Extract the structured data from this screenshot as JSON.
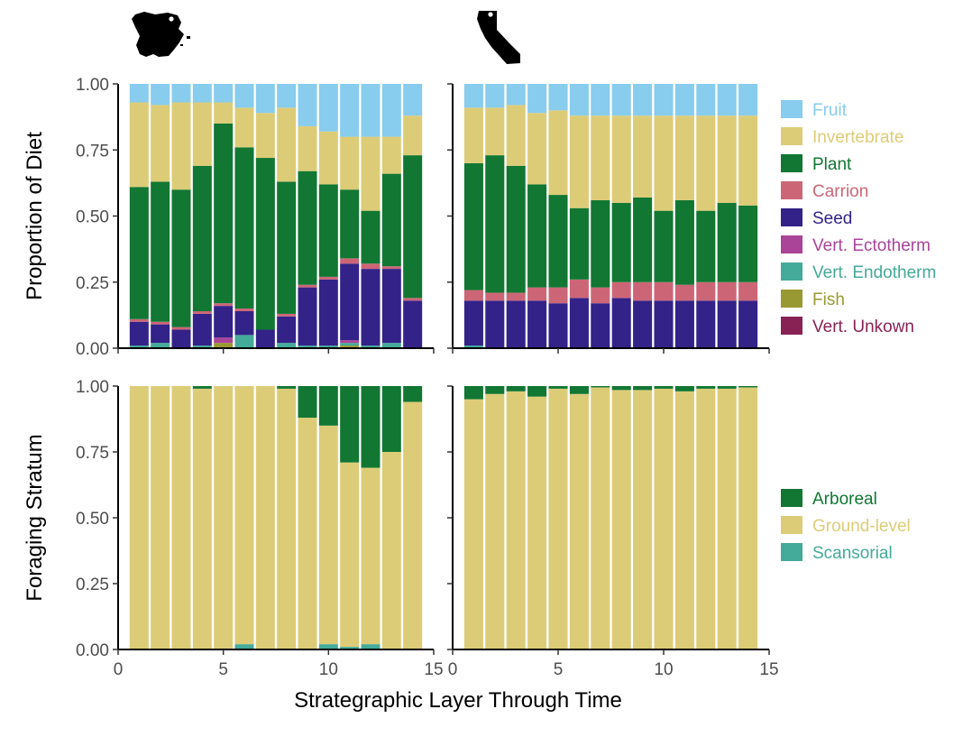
{
  "chart_data": [
    {
      "type": "bar",
      "stacked": true,
      "panel": "diet-spain",
      "region_icon": "spain-map-icon",
      "ylabel": "Proportion of Diet",
      "ylim": [
        0,
        1
      ],
      "yticks": [
        "0.00",
        "0.25",
        "0.50",
        "0.75",
        "1.00"
      ],
      "xlim": [
        0,
        15
      ],
      "x": [
        1,
        2,
        3,
        4,
        5,
        6,
        7,
        8,
        9,
        10,
        11,
        12,
        13,
        14
      ],
      "series": [
        {
          "name": "Vert. Unkown",
          "color": "#882255",
          "values": [
            0,
            0,
            0,
            0,
            0,
            0,
            0,
            0,
            0,
            0,
            0,
            0,
            0,
            0
          ]
        },
        {
          "name": "Fish",
          "color": "#999933",
          "values": [
            0,
            0,
            0,
            0,
            0.02,
            0,
            0,
            0,
            0,
            0,
            0.01,
            0,
            0,
            0
          ]
        },
        {
          "name": "Vert. Endotherm",
          "color": "#44AA99",
          "values": [
            0.01,
            0.02,
            0,
            0.01,
            0,
            0.05,
            0,
            0.02,
            0.01,
            0.01,
            0.01,
            0.01,
            0.02,
            0
          ]
        },
        {
          "name": "Vert. Ectotherm",
          "color": "#AA4499",
          "values": [
            0,
            0,
            0,
            0,
            0.02,
            0,
            0,
            0,
            0,
            0,
            0.01,
            0,
            0,
            0
          ]
        },
        {
          "name": "Seed",
          "color": "#332288",
          "values": [
            0.09,
            0.07,
            0.07,
            0.12,
            0.12,
            0.09,
            0.07,
            0.1,
            0.22,
            0.25,
            0.29,
            0.29,
            0.28,
            0.18
          ]
        },
        {
          "name": "Carrion",
          "color": "#CC6677",
          "values": [
            0.01,
            0.01,
            0.01,
            0.01,
            0.01,
            0.01,
            0,
            0.01,
            0.01,
            0.01,
            0.02,
            0.02,
            0.01,
            0.01
          ]
        },
        {
          "name": "Plant",
          "color": "#117733",
          "values": [
            0.5,
            0.53,
            0.52,
            0.55,
            0.68,
            0.61,
            0.65,
            0.5,
            0.43,
            0.35,
            0.26,
            0.2,
            0.35,
            0.54
          ]
        },
        {
          "name": "Invertebrate",
          "color": "#DDCC77",
          "values": [
            0.32,
            0.29,
            0.33,
            0.24,
            0.08,
            0.15,
            0.17,
            0.28,
            0.17,
            0.2,
            0.2,
            0.28,
            0.14,
            0.15
          ]
        },
        {
          "name": "Fruit",
          "color": "#88CCEE",
          "values": [
            0.07,
            0.08,
            0.07,
            0.07,
            0.07,
            0.09,
            0.11,
            0.09,
            0.16,
            0.18,
            0.2,
            0.2,
            0.2,
            0.12
          ]
        }
      ]
    },
    {
      "type": "bar",
      "stacked": true,
      "panel": "diet-california",
      "region_icon": "california-map-icon",
      "ylim": [
        0,
        1
      ],
      "xlim": [
        0,
        15
      ],
      "x": [
        1,
        2,
        3,
        4,
        5,
        6,
        7,
        8,
        9,
        10,
        11,
        12,
        13,
        14
      ],
      "series": [
        {
          "name": "Vert. Unkown",
          "color": "#882255",
          "values": [
            0,
            0,
            0,
            0,
            0,
            0,
            0,
            0,
            0,
            0,
            0,
            0,
            0,
            0
          ]
        },
        {
          "name": "Fish",
          "color": "#999933",
          "values": [
            0,
            0,
            0,
            0,
            0,
            0,
            0,
            0,
            0,
            0,
            0,
            0,
            0,
            0
          ]
        },
        {
          "name": "Vert. Endotherm",
          "color": "#44AA99",
          "values": [
            0.01,
            0,
            0,
            0,
            0,
            0,
            0,
            0,
            0,
            0,
            0,
            0,
            0,
            0
          ]
        },
        {
          "name": "Vert. Ectotherm",
          "color": "#AA4499",
          "values": [
            0,
            0,
            0,
            0,
            0,
            0,
            0,
            0,
            0,
            0,
            0,
            0,
            0,
            0
          ]
        },
        {
          "name": "Seed",
          "color": "#332288",
          "values": [
            0.17,
            0.18,
            0.18,
            0.18,
            0.17,
            0.19,
            0.17,
            0.19,
            0.18,
            0.18,
            0.18,
            0.18,
            0.18,
            0.18
          ]
        },
        {
          "name": "Carrion",
          "color": "#CC6677",
          "values": [
            0.04,
            0.03,
            0.03,
            0.05,
            0.06,
            0.07,
            0.06,
            0.06,
            0.07,
            0.07,
            0.06,
            0.07,
            0.07,
            0.07
          ]
        },
        {
          "name": "Plant",
          "color": "#117733",
          "values": [
            0.48,
            0.52,
            0.48,
            0.39,
            0.35,
            0.27,
            0.33,
            0.3,
            0.32,
            0.27,
            0.32,
            0.27,
            0.3,
            0.29
          ]
        },
        {
          "name": "Invertebrate",
          "color": "#DDCC77",
          "values": [
            0.21,
            0.18,
            0.23,
            0.27,
            0.32,
            0.35,
            0.32,
            0.33,
            0.31,
            0.36,
            0.32,
            0.36,
            0.33,
            0.34
          ]
        },
        {
          "name": "Fruit",
          "color": "#88CCEE",
          "values": [
            0.09,
            0.09,
            0.08,
            0.11,
            0.1,
            0.12,
            0.12,
            0.12,
            0.12,
            0.12,
            0.12,
            0.12,
            0.12,
            0.12
          ]
        }
      ]
    },
    {
      "type": "bar",
      "stacked": true,
      "panel": "stratum-spain",
      "ylabel": "Foraging Stratum",
      "ylim": [
        0,
        1
      ],
      "yticks": [
        "0.00",
        "0.25",
        "0.50",
        "0.75",
        "1.00"
      ],
      "xlim": [
        0,
        15
      ],
      "xticks": [
        "0",
        "5",
        "10",
        "15"
      ],
      "x": [
        1,
        2,
        3,
        4,
        5,
        6,
        7,
        8,
        9,
        10,
        11,
        12,
        13,
        14
      ],
      "series": [
        {
          "name": "Scansorial",
          "color": "#44AA99",
          "values": [
            0,
            0,
            0,
            0,
            0,
            0.02,
            0,
            0,
            0,
            0.02,
            0.01,
            0.02,
            0,
            0
          ]
        },
        {
          "name": "Ground-level",
          "color": "#DDCC77",
          "values": [
            1,
            1,
            1,
            0.99,
            1,
            0.98,
            1,
            0.99,
            0.88,
            0.83,
            0.7,
            0.67,
            0.75,
            0.94
          ]
        },
        {
          "name": "Arboreal",
          "color": "#117733",
          "values": [
            0,
            0,
            0,
            0.01,
            0,
            0,
            0,
            0.01,
            0.12,
            0.15,
            0.29,
            0.31,
            0.25,
            0.06
          ]
        }
      ]
    },
    {
      "type": "bar",
      "stacked": true,
      "panel": "stratum-california",
      "ylim": [
        0,
        1
      ],
      "xlim": [
        0,
        15
      ],
      "xticks": [
        "0",
        "5",
        "10",
        "15"
      ],
      "x": [
        1,
        2,
        3,
        4,
        5,
        6,
        7,
        8,
        9,
        10,
        11,
        12,
        13,
        14
      ],
      "series": [
        {
          "name": "Scansorial",
          "color": "#44AA99",
          "values": [
            0,
            0,
            0,
            0,
            0,
            0,
            0,
            0,
            0,
            0,
            0,
            0,
            0,
            0
          ]
        },
        {
          "name": "Ground-level",
          "color": "#DDCC77",
          "values": [
            0.95,
            0.97,
            0.98,
            0.96,
            0.99,
            0.97,
            0.995,
            0.985,
            0.985,
            0.99,
            0.98,
            0.99,
            0.99,
            0.995
          ]
        },
        {
          "name": "Arboreal",
          "color": "#117733",
          "values": [
            0.05,
            0.03,
            0.02,
            0.04,
            0.01,
            0.03,
            0.005,
            0.015,
            0.015,
            0.01,
            0.02,
            0.01,
            0.01,
            0.005
          ]
        }
      ]
    }
  ],
  "xlabel": "Strategraphic Layer Through Time",
  "legend_diet": [
    {
      "label": "Fruit",
      "color": "#88CCEE"
    },
    {
      "label": "Invertebrate",
      "color": "#DDCC77"
    },
    {
      "label": "Plant",
      "color": "#117733"
    },
    {
      "label": "Carrion",
      "color": "#CC6677"
    },
    {
      "label": "Seed",
      "color": "#332288"
    },
    {
      "label": "Vert. Ectotherm",
      "color": "#AA4499"
    },
    {
      "label": "Vert. Endotherm",
      "color": "#44AA99"
    },
    {
      "label": "Fish",
      "color": "#999933"
    },
    {
      "label": "Vert. Unkown",
      "color": "#882255"
    }
  ],
  "legend_stratum": [
    {
      "label": "Arboreal",
      "color": "#117733"
    },
    {
      "label": "Ground-level",
      "color": "#DDCC77"
    },
    {
      "label": "Scansorial",
      "color": "#44AA99"
    }
  ]
}
